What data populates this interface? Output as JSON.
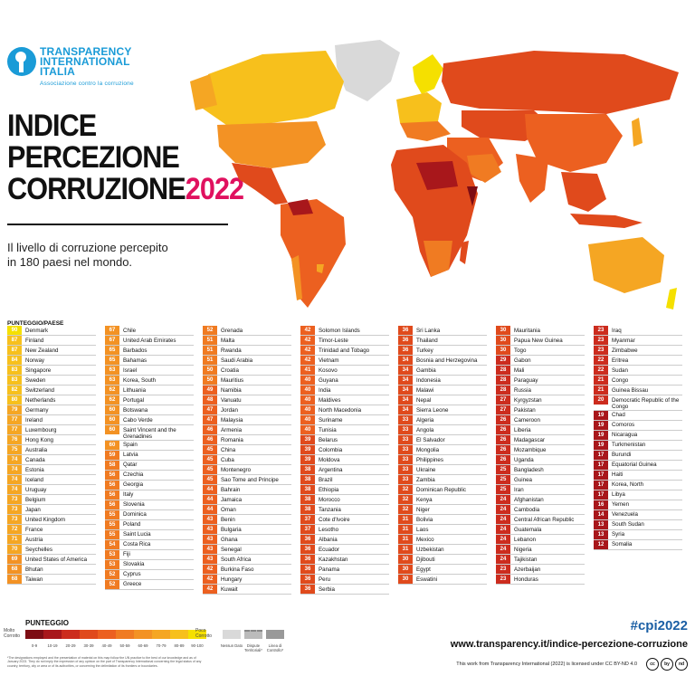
{
  "logo": {
    "line1": "TRANSPARENCY",
    "line2": "INTERNATIONAL",
    "line3": "ITALIA",
    "tagline": "Associazione contro la corruzione"
  },
  "title": {
    "line1": "INDICE",
    "line2": "PERCEZIONE",
    "line3": "CORRUZIONE",
    "year": "2022"
  },
  "subtitle": {
    "line1": "Il livello di corruzione percepito",
    "line2": "in 180 paesi nel mondo."
  },
  "list_header": "PUNTEGGIO/PAESE",
  "colors": {
    "s90": "#f5e000",
    "s80": "#f7c01c",
    "s70": "#f5a623",
    "s60": "#f39224",
    "s50": "#f07b22",
    "s40": "#ec6020",
    "s30": "#e04a1c",
    "s20": "#cc2c1e",
    "s10": "#a8171b",
    "s0": "#7d0d14",
    "nodata": "#d9d9d9"
  },
  "columns": [
    [
      {
        "s": "90",
        "n": "Denmark"
      },
      {
        "s": "87",
        "n": "Finland"
      },
      {
        "s": "87",
        "n": "New Zealand"
      },
      {
        "s": "84",
        "n": "Norway"
      },
      {
        "s": "83",
        "n": "Singapore"
      },
      {
        "s": "83",
        "n": "Sweden"
      },
      {
        "s": "82",
        "n": "Switzerland"
      },
      {
        "s": "80",
        "n": "Netherlands"
      },
      {
        "s": "79",
        "n": "Germany"
      },
      {
        "s": "77",
        "n": "Ireland"
      },
      {
        "s": "77",
        "n": "Luxembourg"
      },
      {
        "s": "76",
        "n": "Hong Kong"
      },
      {
        "s": "75",
        "n": "Australia"
      },
      {
        "s": "74",
        "n": "Canada"
      },
      {
        "s": "74",
        "n": "Estonia"
      },
      {
        "s": "74",
        "n": "Iceland"
      },
      {
        "s": "74",
        "n": "Uruguay"
      },
      {
        "s": "73",
        "n": "Belgium"
      },
      {
        "s": "73",
        "n": "Japan"
      },
      {
        "s": "73",
        "n": "United Kingdom"
      },
      {
        "s": "72",
        "n": "France"
      },
      {
        "s": "71",
        "n": "Austria"
      },
      {
        "s": "70",
        "n": "Seychelles"
      },
      {
        "s": "69",
        "n": "United States of America"
      },
      {
        "s": "68",
        "n": "Bhutan"
      },
      {
        "s": "68",
        "n": "Taiwan"
      }
    ],
    [
      {
        "s": "67",
        "n": "Chile"
      },
      {
        "s": "67",
        "n": "United Arab Emirates"
      },
      {
        "s": "65",
        "n": "Barbados"
      },
      {
        "s": "65",
        "n": "Bahamas"
      },
      {
        "s": "63",
        "n": "Israel"
      },
      {
        "s": "63",
        "n": "Korea, South"
      },
      {
        "s": "62",
        "n": "Lithuania"
      },
      {
        "s": "62",
        "n": "Portugal"
      },
      {
        "s": "60",
        "n": "Botswana"
      },
      {
        "s": "60",
        "n": "Cabo Verde"
      },
      {
        "s": "60",
        "n": "Saint Vincent and the Grenadines"
      },
      {
        "s": "60",
        "n": "Spain"
      },
      {
        "s": "59",
        "n": "Latvia"
      },
      {
        "s": "58",
        "n": "Qatar"
      },
      {
        "s": "56",
        "n": "Czechia"
      },
      {
        "s": "56",
        "n": "Georgia"
      },
      {
        "s": "56",
        "n": "Italy"
      },
      {
        "s": "56",
        "n": "Slovenia"
      },
      {
        "s": "55",
        "n": "Dominica"
      },
      {
        "s": "55",
        "n": "Poland"
      },
      {
        "s": "55",
        "n": "Saint Lucia"
      },
      {
        "s": "54",
        "n": "Costa Rica"
      },
      {
        "s": "53",
        "n": "Fiji"
      },
      {
        "s": "53",
        "n": "Slovakia"
      },
      {
        "s": "52",
        "n": "Cyprus"
      },
      {
        "s": "52",
        "n": "Greece"
      }
    ],
    [
      {
        "s": "52",
        "n": "Grenada"
      },
      {
        "s": "51",
        "n": "Malta"
      },
      {
        "s": "51",
        "n": "Rwanda"
      },
      {
        "s": "51",
        "n": "Saudi Arabia"
      },
      {
        "s": "50",
        "n": "Croatia"
      },
      {
        "s": "50",
        "n": "Mauritius"
      },
      {
        "s": "49",
        "n": "Namibia"
      },
      {
        "s": "48",
        "n": "Vanuatu"
      },
      {
        "s": "47",
        "n": "Jordan"
      },
      {
        "s": "47",
        "n": "Malaysia"
      },
      {
        "s": "46",
        "n": "Armenia"
      },
      {
        "s": "46",
        "n": "Romania"
      },
      {
        "s": "45",
        "n": "China"
      },
      {
        "s": "45",
        "n": "Cuba"
      },
      {
        "s": "45",
        "n": "Montenegro"
      },
      {
        "s": "45",
        "n": "Sao Tome and Principe"
      },
      {
        "s": "44",
        "n": "Bahrain"
      },
      {
        "s": "44",
        "n": "Jamaica"
      },
      {
        "s": "44",
        "n": "Oman"
      },
      {
        "s": "43",
        "n": "Benin"
      },
      {
        "s": "43",
        "n": "Bulgaria"
      },
      {
        "s": "43",
        "n": "Ghana"
      },
      {
        "s": "43",
        "n": "Senegal"
      },
      {
        "s": "43",
        "n": "South Africa"
      },
      {
        "s": "42",
        "n": "Burkina Faso"
      },
      {
        "s": "42",
        "n": "Hungary"
      },
      {
        "s": "42",
        "n": "Kuwait"
      }
    ],
    [
      {
        "s": "42",
        "n": "Solomon Islands"
      },
      {
        "s": "42",
        "n": "Timor-Leste"
      },
      {
        "s": "42",
        "n": "Trinidad and Tobago"
      },
      {
        "s": "42",
        "n": "Vietnam"
      },
      {
        "s": "41",
        "n": "Kosovo"
      },
      {
        "s": "40",
        "n": "Guyana"
      },
      {
        "s": "40",
        "n": "India"
      },
      {
        "s": "40",
        "n": "Maldives"
      },
      {
        "s": "40",
        "n": "North Macedonia"
      },
      {
        "s": "40",
        "n": "Suriname"
      },
      {
        "s": "40",
        "n": "Tunisia"
      },
      {
        "s": "39",
        "n": "Belarus"
      },
      {
        "s": "39",
        "n": "Colombia"
      },
      {
        "s": "39",
        "n": "Moldova"
      },
      {
        "s": "38",
        "n": "Argentina"
      },
      {
        "s": "38",
        "n": "Brazil"
      },
      {
        "s": "38",
        "n": "Ethiopia"
      },
      {
        "s": "38",
        "n": "Morocco"
      },
      {
        "s": "38",
        "n": "Tanzania"
      },
      {
        "s": "37",
        "n": "Cote d'Ivoire"
      },
      {
        "s": "37",
        "n": "Lesotho"
      },
      {
        "s": "36",
        "n": "Albania"
      },
      {
        "s": "36",
        "n": "Ecuador"
      },
      {
        "s": "36",
        "n": "Kazakhstan"
      },
      {
        "s": "36",
        "n": "Panama"
      },
      {
        "s": "36",
        "n": "Peru"
      },
      {
        "s": "36",
        "n": "Serbia"
      }
    ],
    [
      {
        "s": "36",
        "n": "Sri Lanka"
      },
      {
        "s": "36",
        "n": "Thailand"
      },
      {
        "s": "36",
        "n": "Turkey"
      },
      {
        "s": "34",
        "n": "Bosnia and Herzegovina"
      },
      {
        "s": "34",
        "n": "Gambia"
      },
      {
        "s": "34",
        "n": "Indonesia"
      },
      {
        "s": "34",
        "n": "Malawi"
      },
      {
        "s": "34",
        "n": "Nepal"
      },
      {
        "s": "34",
        "n": "Sierra Leone"
      },
      {
        "s": "33",
        "n": "Algeria"
      },
      {
        "s": "33",
        "n": "Angola"
      },
      {
        "s": "33",
        "n": "El Salvador"
      },
      {
        "s": "33",
        "n": "Mongolia"
      },
      {
        "s": "33",
        "n": "Philippines"
      },
      {
        "s": "33",
        "n": "Ukraine"
      },
      {
        "s": "33",
        "n": "Zambia"
      },
      {
        "s": "32",
        "n": "Dominican Republic"
      },
      {
        "s": "32",
        "n": "Kenya"
      },
      {
        "s": "32",
        "n": "Niger"
      },
      {
        "s": "31",
        "n": "Bolivia"
      },
      {
        "s": "31",
        "n": "Laos"
      },
      {
        "s": "31",
        "n": "Mexico"
      },
      {
        "s": "31",
        "n": "Uzbekistan"
      },
      {
        "s": "30",
        "n": "Djibouti"
      },
      {
        "s": "30",
        "n": "Egypt"
      },
      {
        "s": "30",
        "n": "Eswatini"
      }
    ],
    [
      {
        "s": "30",
        "n": "Mauritania"
      },
      {
        "s": "30",
        "n": "Papua New Guinea"
      },
      {
        "s": "30",
        "n": "Togo"
      },
      {
        "s": "29",
        "n": "Gabon"
      },
      {
        "s": "28",
        "n": "Mali"
      },
      {
        "s": "28",
        "n": "Paraguay"
      },
      {
        "s": "28",
        "n": "Russia"
      },
      {
        "s": "27",
        "n": "Kyrgyzstan"
      },
      {
        "s": "27",
        "n": "Pakistan"
      },
      {
        "s": "26",
        "n": "Cameroon"
      },
      {
        "s": "26",
        "n": "Liberia"
      },
      {
        "s": "26",
        "n": "Madagascar"
      },
      {
        "s": "26",
        "n": "Mozambique"
      },
      {
        "s": "26",
        "n": "Uganda"
      },
      {
        "s": "25",
        "n": "Bangladesh"
      },
      {
        "s": "25",
        "n": "Guinea"
      },
      {
        "s": "25",
        "n": "Iran"
      },
      {
        "s": "24",
        "n": "Afghanistan"
      },
      {
        "s": "24",
        "n": "Cambodia"
      },
      {
        "s": "24",
        "n": "Central African Republic"
      },
      {
        "s": "24",
        "n": "Guatemala"
      },
      {
        "s": "24",
        "n": "Lebanon"
      },
      {
        "s": "24",
        "n": "Nigeria"
      },
      {
        "s": "24",
        "n": "Tajikistan"
      },
      {
        "s": "23",
        "n": "Azerbaijan"
      },
      {
        "s": "23",
        "n": "Honduras"
      }
    ],
    [
      {
        "s": "23",
        "n": "Iraq"
      },
      {
        "s": "23",
        "n": "Myanmar"
      },
      {
        "s": "23",
        "n": "Zimbabwe"
      },
      {
        "s": "22",
        "n": "Eritrea"
      },
      {
        "s": "22",
        "n": "Sudan"
      },
      {
        "s": "21",
        "n": "Congo"
      },
      {
        "s": "21",
        "n": "Guinea Bissau"
      },
      {
        "s": "20",
        "n": "Democratic Republic of the Congo"
      },
      {
        "s": "19",
        "n": "Chad"
      },
      {
        "s": "19",
        "n": "Comoros"
      },
      {
        "s": "19",
        "n": "Nicaragua"
      },
      {
        "s": "19",
        "n": "Turkmenistan"
      },
      {
        "s": "17",
        "n": "Burundi"
      },
      {
        "s": "17",
        "n": "Equatorial Guinea"
      },
      {
        "s": "17",
        "n": "Haiti"
      },
      {
        "s": "17",
        "n": "Korea, North"
      },
      {
        "s": "17",
        "n": "Libya"
      },
      {
        "s": "16",
        "n": "Yemen"
      },
      {
        "s": "14",
        "n": "Venezuela"
      },
      {
        "s": "13",
        "n": "South Sudan"
      },
      {
        "s": "13",
        "n": "Syria"
      },
      {
        "s": "12",
        "n": "Somalia"
      }
    ]
  ],
  "legend": {
    "title": "PUNTEGGIO",
    "low_label": "Molto Corrotto",
    "high_label": "Poco Corrotto",
    "ranges": [
      "0-9",
      "10-19",
      "20-29",
      "30-39",
      "40-49",
      "50-59",
      "60-69",
      "70-79",
      "80-89",
      "90-100"
    ],
    "nodata_labels": [
      "Nessun Dato",
      "Dispute Territoriali*",
      "Linea di Controllo*"
    ]
  },
  "fineprint": "*The designations employed and the presentation of material on this map follow the UN practice to the best of our knowledge and as of January 2023. They do not imply the expression of any opinion on the part of Transparency International concerning the legal status of any country, territory, city or area or of its authorities, or concerning the delimitation of its frontiers or boundaries.",
  "hashtag": "#cpi2022",
  "url": "www.transparency.it/indice-percezione-corruzione",
  "license": "This work from Transparency International (2022) is licensed under CC BY-ND 4.0",
  "cc_icons": [
    "cc",
    "by",
    "nd"
  ]
}
